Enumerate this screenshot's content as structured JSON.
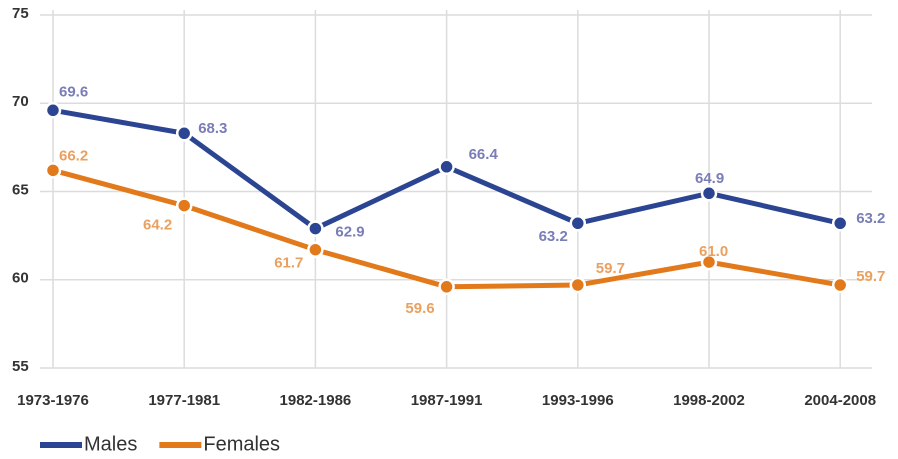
{
  "chart_data": {
    "type": "line",
    "categories": [
      "1973-1976",
      "1977-1981",
      "1982-1986",
      "1987-1991",
      "1993-1996",
      "1998-2002",
      "2004-2008"
    ],
    "series": [
      {
        "name": "Males",
        "color": "#2c4593",
        "label_color": "#7a7db6",
        "values": [
          69.6,
          68.3,
          62.9,
          66.4,
          63.2,
          64.9,
          63.2
        ],
        "value_labels": [
          "69.6",
          "68.3",
          "62.9",
          "66.4",
          "63.2",
          "64.9",
          "63.2"
        ]
      },
      {
        "name": "Females",
        "color": "#e27a1c",
        "label_color": "#eaa160",
        "values": [
          66.2,
          64.2,
          61.7,
          59.6,
          59.7,
          61.0,
          59.7
        ],
        "value_labels": [
          "66.2",
          "64.2",
          "61.7",
          "59.6",
          "59.7",
          "61.0",
          "59.7"
        ]
      }
    ],
    "ylim": [
      55,
      75
    ],
    "yticks": [
      55,
      60,
      65,
      70,
      75
    ],
    "grid": true,
    "legend": "bottom-left"
  }
}
